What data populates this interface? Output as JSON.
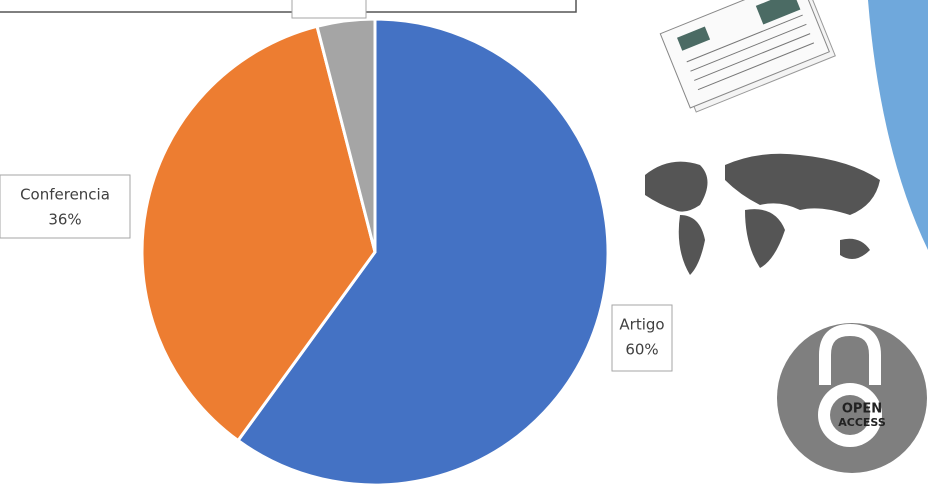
{
  "chart_data": {
    "type": "pie",
    "categories": [
      "Artigo",
      "Conferencia",
      null
    ],
    "values": [
      60,
      36,
      4
    ],
    "value_labels": [
      "60%",
      "36%",
      null
    ],
    "colors": [
      "#4472c4",
      "#ed7d31",
      "#a5a5a5"
    ]
  },
  "logo": {
    "lines": [
      "OPEN",
      "ACCESS"
    ]
  }
}
